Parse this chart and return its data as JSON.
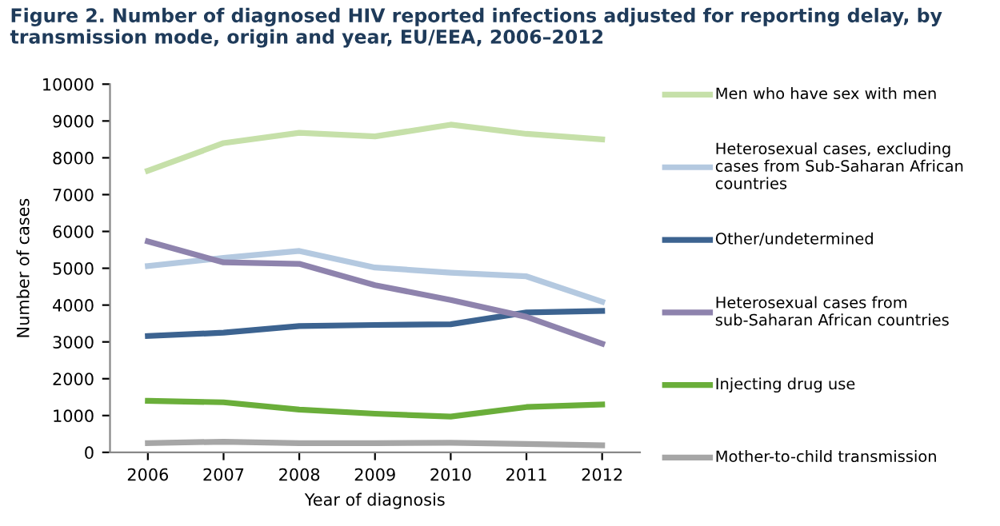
{
  "chart_data": {
    "type": "line",
    "title": "Figure 2. Number of diagnosed HIV reported infections adjusted for reporting delay, by transmission mode, origin and year, EU/EEA, 2006–2012",
    "xlabel": "Year of diagnosis",
    "ylabel": "Number of cases",
    "categories": [
      "2006",
      "2007",
      "2008",
      "2009",
      "2010",
      "2011",
      "2012"
    ],
    "series": [
      {
        "name": "Men who have sex with men",
        "color": "#c6e0a9",
        "values": [
          7650,
          8400,
          8680,
          8580,
          8900,
          8650,
          8500
        ]
      },
      {
        "name": "Heterosexual cases, excluding cases from Sub-Saharan African countries",
        "color": "#b4c9e0",
        "values": [
          5060,
          5280,
          5470,
          5020,
          4880,
          4780,
          4090
        ]
      },
      {
        "name": "Other/undetermined",
        "color": "#3c6390",
        "values": [
          3160,
          3250,
          3430,
          3460,
          3480,
          3800,
          3840
        ]
      },
      {
        "name": "Heterosexual cases from sub-Saharan African countries",
        "color": "#8e83ad",
        "values": [
          5730,
          5160,
          5120,
          4540,
          4140,
          3680,
          2950
        ]
      },
      {
        "name": "Injecting drug use",
        "color": "#6aae3a",
        "values": [
          1400,
          1360,
          1160,
          1050,
          970,
          1230,
          1300
        ]
      },
      {
        "name": "Mother-to-child transmission",
        "color": "#a6a6a6",
        "values": [
          250,
          290,
          250,
          250,
          260,
          230,
          190
        ]
      }
    ],
    "ylim": [
      0,
      10000
    ],
    "yticks": [
      0,
      1000,
      2000,
      3000,
      4000,
      5000,
      6000,
      7000,
      8000,
      9000,
      10000
    ],
    "grid": false,
    "legend": "right"
  }
}
